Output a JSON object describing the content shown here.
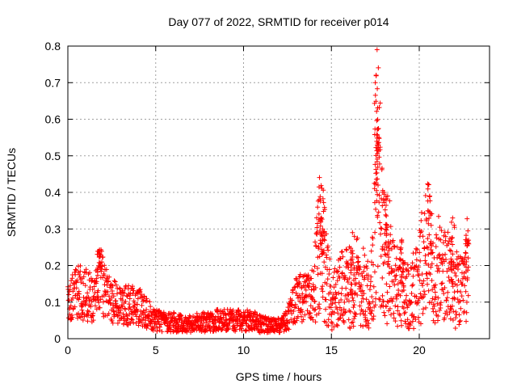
{
  "chart_data": {
    "type": "scatter",
    "title": "Day 077 of 2022, SRMTID for receiver p014",
    "xlabel": "GPS time / hours",
    "ylabel": "SRMTID / TECUs",
    "xlim": [
      0,
      24
    ],
    "ylim": [
      0,
      0.8
    ],
    "xticks": [
      0,
      5,
      10,
      15,
      20
    ],
    "yticks": [
      0,
      0.1,
      0.2,
      0.3,
      0.4,
      0.5,
      0.6,
      0.7,
      0.8
    ],
    "xtick_labels": [
      "0",
      "5",
      "10",
      "15",
      "20"
    ],
    "ytick_labels": [
      "0",
      "0.1",
      "0.2",
      "0.3",
      "0.4",
      "0.5",
      "0.6",
      "0.7",
      "0.8"
    ],
    "grid": true,
    "marker": "+",
    "color": "#ff0000",
    "series": [
      {
        "name": "SRMTID",
        "envelope_x": [
          0,
          0.5,
          1.0,
          1.5,
          1.8,
          2.0,
          2.5,
          3.0,
          3.5,
          4.0,
          4.5,
          5.0,
          5.5,
          6.0,
          6.5,
          7.0,
          7.5,
          8.0,
          8.5,
          9.0,
          9.5,
          10.0,
          10.5,
          11.0,
          11.5,
          12.0,
          12.5,
          13.0,
          13.5,
          14.0,
          14.3,
          14.6,
          15.0,
          15.5,
          16.0,
          16.5,
          17.0,
          17.3,
          17.5,
          17.7,
          17.9,
          18.1,
          18.5,
          19.0,
          19.5,
          20.0,
          20.3,
          20.5,
          20.8,
          21.0,
          21.5,
          22.0,
          22.5,
          22.8
        ],
        "envelope_y": [
          0.11,
          0.13,
          0.12,
          0.11,
          0.17,
          0.15,
          0.1,
          0.1,
          0.09,
          0.09,
          0.07,
          0.05,
          0.045,
          0.045,
          0.04,
          0.04,
          0.045,
          0.045,
          0.05,
          0.05,
          0.05,
          0.05,
          0.05,
          0.04,
          0.035,
          0.035,
          0.05,
          0.11,
          0.11,
          0.12,
          0.25,
          0.22,
          0.1,
          0.13,
          0.14,
          0.16,
          0.13,
          0.14,
          0.3,
          0.45,
          0.25,
          0.2,
          0.16,
          0.13,
          0.12,
          0.17,
          0.22,
          0.25,
          0.18,
          0.19,
          0.17,
          0.14,
          0.12,
          0.21
        ],
        "spikes_x": [
          1.8,
          14.3,
          14.5,
          16.2,
          17.5,
          17.6,
          17.7,
          18.0,
          18.2,
          19.0,
          20.6,
          21.9,
          22.7
        ],
        "spikes_y": [
          0.24,
          0.38,
          0.3,
          0.29,
          0.7,
          0.79,
          0.55,
          0.4,
          0.39,
          0.27,
          0.39,
          0.33,
          0.27
        ]
      }
    ]
  }
}
